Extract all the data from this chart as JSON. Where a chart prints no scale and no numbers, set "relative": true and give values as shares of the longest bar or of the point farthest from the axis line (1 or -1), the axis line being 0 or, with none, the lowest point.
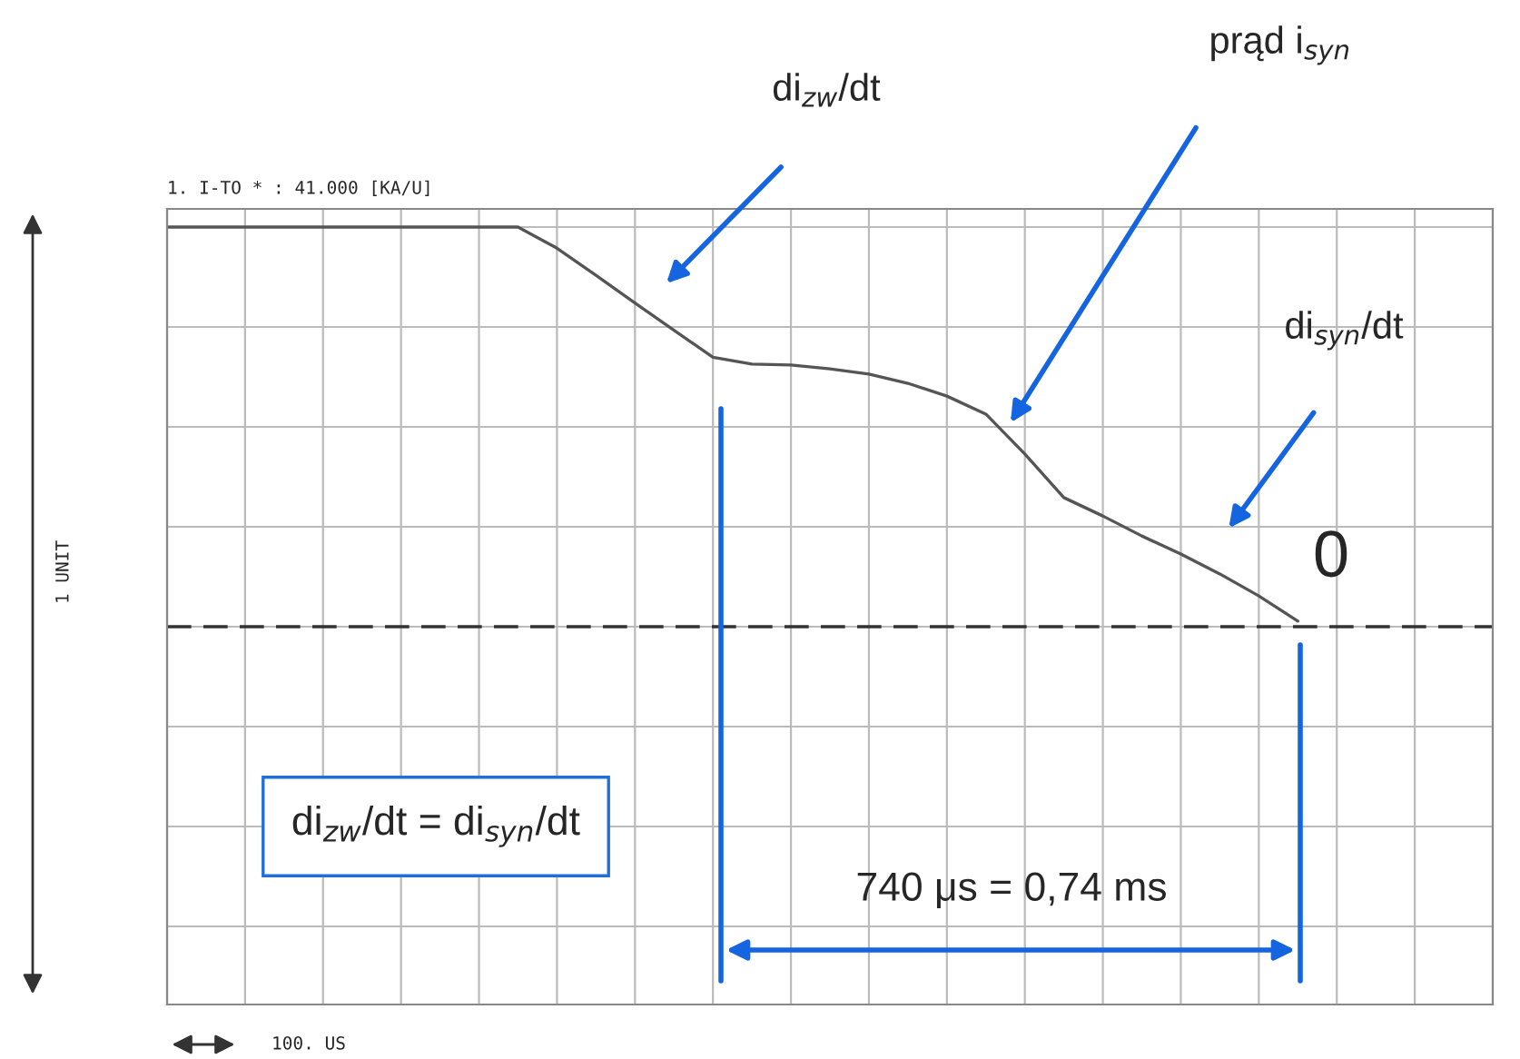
{
  "chart_data": {
    "type": "line",
    "relative": true,
    "title": "1. I-TO * : 41.000 [KA/U]",
    "categories": [
      null,
      null,
      null,
      null,
      null,
      null,
      null,
      null,
      null,
      null,
      null,
      null,
      null,
      null,
      null,
      null,
      null,
      null,
      null,
      null,
      null,
      null,
      null,
      null,
      null,
      null,
      null,
      null,
      null,
      null,
      null,
      null,
      null,
      null,
      null
    ],
    "series": [
      {
        "color": "#555555",
        "values": [
          1,
          1,
          1,
          1,
          1,
          1,
          1,
          1,
          1,
          1,
          0.947,
          0.879,
          0.81,
          0.742,
          0.674,
          0.657,
          0.655,
          0.645,
          0.632,
          0.609,
          0.577,
          0.532,
          0.432,
          0.323,
          0.277,
          0.227,
          0.182,
          0.132,
          0.077,
          0.014,
          null,
          null,
          null,
          null,
          null
        ]
      }
    ],
    "ref_lines": [
      {
        "axis": "y",
        "value": 0,
        "color": "#333333",
        "line_style": "dashed"
      }
    ],
    "annotations": [
      "di$_{zw}$/dt",
      "prąd i$_{syn}$",
      "di$_{syn}$/dt",
      "0",
      "di$_{zw}$/dt = di$_{syn}$/dt",
      "740 μs = 0,74 ms",
      "1 UNIT",
      "100. US"
    ],
    "grid": true,
    "legend": false,
    "marker": "none",
    "line_style": "solid"
  }
}
